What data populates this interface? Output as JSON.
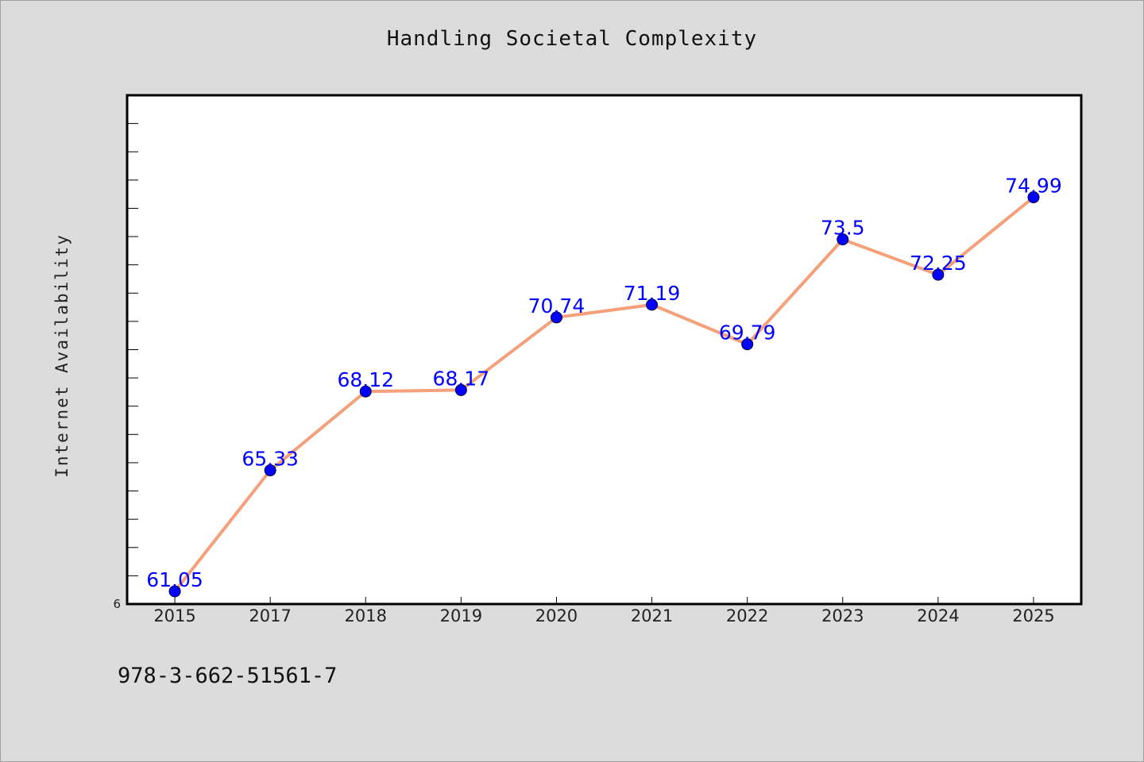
{
  "chart_data": {
    "type": "line",
    "title": "Handling Societal Complexity",
    "xlabel": "",
    "ylabel": "Internet Availability",
    "categories": [
      "2015",
      "2017",
      "2018",
      "2019",
      "2020",
      "2021",
      "2022",
      "2023",
      "2024",
      "2025"
    ],
    "series": [
      {
        "values": [
          61.05,
          65.33,
          68.12,
          68.17,
          70.74,
          71.19,
          69.79,
          73.5,
          72.25,
          74.99
        ],
        "labels": [
          "61.05",
          "65.33",
          "68.12",
          "68.17",
          "70.74",
          "71.19",
          "69.79",
          "73.5",
          "72.25",
          "74.99"
        ],
        "line_color": "#f4a07a",
        "marker_color": "#0000ff",
        "label_color": "#0000ff"
      }
    ],
    "ylim": [
      60.6,
      78.6
    ],
    "y_tick_label": "6",
    "grid": false,
    "legend": "none"
  },
  "footer_text": "978-3-662-51561-7",
  "colors": {
    "background": "#dcdcdc",
    "plot_area": "#ffffff",
    "axis": "#000000"
  }
}
